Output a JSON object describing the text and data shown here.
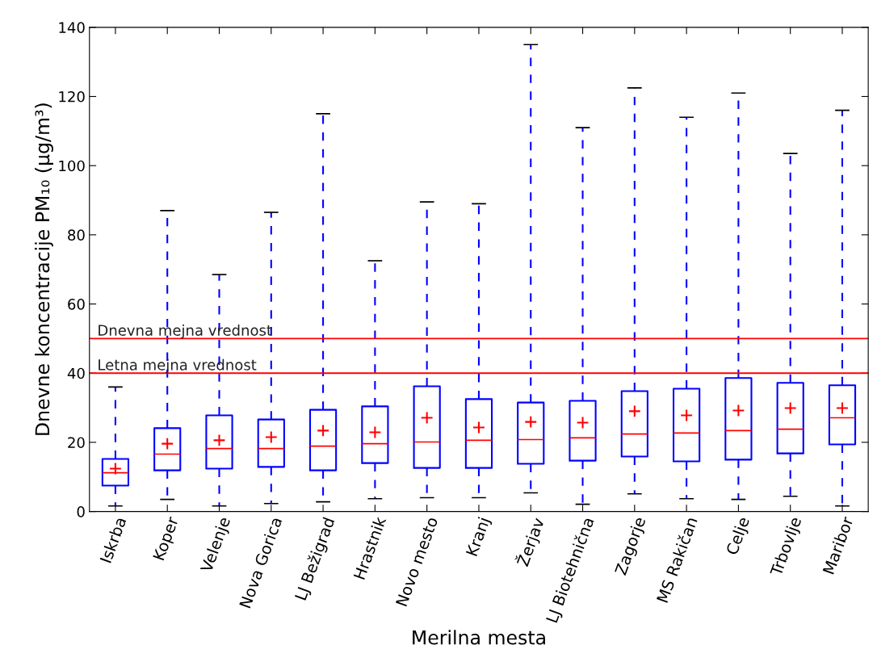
{
  "chart_data": {
    "type": "box",
    "xlabel": "Merilna mesta",
    "ylabel": "Dnevne koncentracije PM₁₀ (μg/m³)",
    "categories": [
      "Iskrba",
      "Koper",
      "Velenje",
      "Nova Gorica",
      "LJ Bežigrad",
      "Hrastnik",
      "Novo mesto",
      "Kranj",
      "Žerjav",
      "LJ Biotehnična",
      "Zagorje",
      "MS Rakičan",
      "Celje",
      "Trbovlje",
      "Maribor"
    ],
    "boxes": [
      {
        "low": 1.6,
        "q1": 7.5,
        "median": 11.2,
        "q3": 15.2,
        "high": 36,
        "mean": 12.4
      },
      {
        "low": 3.5,
        "q1": 11.9,
        "median": 16.6,
        "q3": 24.1,
        "high": 87,
        "mean": 19.6
      },
      {
        "low": 1.6,
        "q1": 12.4,
        "median": 18.2,
        "q3": 27.8,
        "high": 68.5,
        "mean": 20.6
      },
      {
        "low": 2.3,
        "q1": 12.9,
        "median": 18.2,
        "q3": 26.6,
        "high": 86.5,
        "mean": 21.5
      },
      {
        "low": 2.8,
        "q1": 11.9,
        "median": 18.9,
        "q3": 29.4,
        "high": 115,
        "mean": 23.4
      },
      {
        "low": 3.7,
        "q1": 14,
        "median": 19.6,
        "q3": 30.4,
        "high": 72.5,
        "mean": 22.9
      },
      {
        "low": 4,
        "q1": 12.6,
        "median": 20.1,
        "q3": 36.2,
        "high": 89.5,
        "mean": 27.1
      },
      {
        "low": 4,
        "q1": 12.6,
        "median": 20.6,
        "q3": 32.5,
        "high": 89,
        "mean": 24.3
      },
      {
        "low": 5.4,
        "q1": 13.8,
        "median": 20.8,
        "q3": 31.5,
        "high": 135,
        "mean": 25.9
      },
      {
        "low": 2.1,
        "q1": 14.7,
        "median": 21.3,
        "q3": 32,
        "high": 111,
        "mean": 25.7
      },
      {
        "low": 5.1,
        "q1": 15.9,
        "median": 22.4,
        "q3": 34.8,
        "high": 122.5,
        "mean": 29
      },
      {
        "low": 3.7,
        "q1": 14.5,
        "median": 22.7,
        "q3": 35.5,
        "high": 114,
        "mean": 27.8
      },
      {
        "low": 3.5,
        "q1": 15,
        "median": 23.4,
        "q3": 38.6,
        "high": 121,
        "mean": 29.2
      },
      {
        "low": 4.4,
        "q1": 16.8,
        "median": 23.8,
        "q3": 37.2,
        "high": 103.5,
        "mean": 29.9
      },
      {
        "low": 1.6,
        "q1": 19.4,
        "median": 27.1,
        "q3": 36.5,
        "high": 116,
        "mean": 29.9
      }
    ],
    "color": "#0000ff",
    "ylim": [
      0,
      140
    ],
    "yticks": [
      0,
      20,
      40,
      60,
      80,
      100,
      120,
      140
    ],
    "grid": false,
    "legend": false,
    "ref_lines": [
      {
        "axis": "y",
        "value": 50,
        "label": "Dnevna mejna vrednost",
        "color": "#ff0000"
      },
      {
        "axis": "y",
        "value": 40,
        "label": "Letna mejna vrednost",
        "color": "#ff0000"
      }
    ]
  }
}
